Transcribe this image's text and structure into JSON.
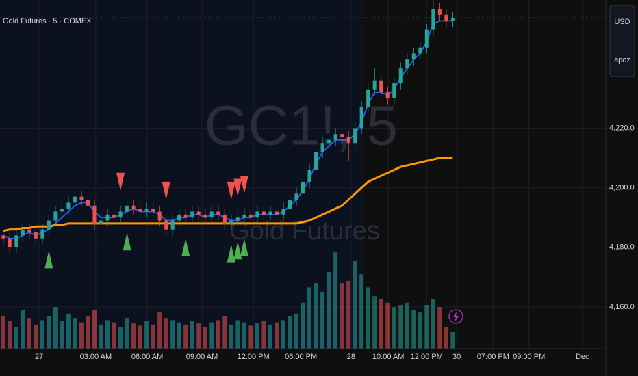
{
  "chart_data": {
    "type": "candlestick",
    "title": "Gold Futures · 5 · COMEX",
    "watermark": "GC1!, 5",
    "watermark_subtitle": "Gold Futures",
    "currency": "USD",
    "user": "apoz",
    "open": [
      4184,
      4183,
      4180,
      4184,
      4186,
      4185,
      4183,
      4186,
      4189,
      4192,
      4193,
      4195,
      4197,
      4196,
      4194,
      4188,
      4189,
      4191,
      4190,
      4192,
      4194,
      4193,
      4192,
      4193,
      4192,
      4189,
      4186,
      4189,
      4191,
      4190,
      4192,
      4191,
      4190,
      4192,
      4191,
      4188,
      4189,
      4190,
      4191,
      4190,
      4192,
      4191,
      4192,
      4191,
      4193,
      4196,
      4198,
      4202,
      4206,
      4212,
      4215,
      4216,
      4218,
      4217,
      4215,
      4220,
      4227,
      4233,
      4236,
      4232,
      4230,
      4235,
      4240,
      4243,
      4245,
      4247,
      4253,
      4260,
      4258,
      4256
    ],
    "high": [
      4186,
      4185,
      4186,
      4188,
      4188,
      4187,
      4188,
      4191,
      4194,
      4195,
      4197,
      4199,
      4199,
      4198,
      4196,
      4191,
      4193,
      4193,
      4194,
      4196,
      4196,
      4195,
      4195,
      4195,
      4194,
      4191,
      4191,
      4193,
      4193,
      4194,
      4194,
      4193,
      4194,
      4194,
      4193,
      4191,
      4192,
      4193,
      4193,
      4194,
      4194,
      4194,
      4194,
      4195,
      4198,
      4200,
      4204,
      4208,
      4214,
      4217,
      4218,
      4220,
      4220,
      4219,
      4222,
      4229,
      4235,
      4240,
      4238,
      4234,
      4237,
      4242,
      4245,
      4247,
      4249,
      4255,
      4263,
      4262,
      4260,
      4259
    ],
    "low": [
      4181,
      4178,
      4178,
      4182,
      4183,
      4181,
      4181,
      4184,
      4187,
      4190,
      4191,
      4193,
      4194,
      4192,
      4186,
      4186,
      4187,
      4188,
      4188,
      4190,
      4191,
      4190,
      4190,
      4190,
      4187,
      4184,
      4184,
      4187,
      4188,
      4188,
      4189,
      4188,
      4188,
      4189,
      4186,
      4186,
      4187,
      4188,
      4188,
      4188,
      4189,
      4189,
      4189,
      4189,
      4191,
      4194,
      4196,
      4200,
      4204,
      4210,
      4213,
      4214,
      4215,
      4209,
      4213,
      4218,
      4225,
      4231,
      4230,
      4228,
      4228,
      4233,
      4238,
      4241,
      4243,
      4245,
      4251,
      4256,
      4254,
      4254
    ],
    "close": [
      4183,
      4180,
      4184,
      4186,
      4185,
      4183,
      4186,
      4189,
      4192,
      4193,
      4195,
      4197,
      4196,
      4194,
      4188,
      4189,
      4191,
      4190,
      4192,
      4194,
      4193,
      4192,
      4193,
      4192,
      4189,
      4186,
      4189,
      4191,
      4190,
      4192,
      4191,
      4190,
      4192,
      4191,
      4188,
      4189,
      4190,
      4191,
      4190,
      4192,
      4191,
      4192,
      4191,
      4193,
      4196,
      4198,
      4202,
      4206,
      4212,
      4215,
      4216,
      4218,
      4217,
      4215,
      4220,
      4227,
      4233,
      4236,
      4232,
      4230,
      4235,
      4240,
      4243,
      4245,
      4247,
      4253,
      4260,
      4258,
      4256,
      4257
    ],
    "volume": [
      300,
      250,
      200,
      350,
      280,
      220,
      260,
      300,
      380,
      250,
      320,
      280,
      240,
      300,
      350,
      220,
      260,
      240,
      200,
      280,
      230,
      210,
      250,
      220,
      330,
      280,
      260,
      240,
      220,
      250,
      230,
      200,
      240,
      260,
      300,
      220,
      260,
      240,
      210,
      230,
      250,
      220,
      240,
      260,
      300,
      320,
      420,
      560,
      600,
      520,
      700,
      880,
      600,
      620,
      800,
      680,
      560,
      480,
      450,
      420,
      380,
      400,
      420,
      350,
      330,
      400,
      450,
      380,
      200,
      150
    ],
    "series": [
      {
        "color": "#2962ff",
        "values": [
          4184,
          4183,
          4183,
          4184,
          4185,
          4184,
          4185,
          4186,
          4188,
          4190,
          4192,
          4194,
          4195,
          4195,
          4192,
          4190,
          4190,
          4190,
          4191,
          4192,
          4193,
          4192,
          4192,
          4192,
          4191,
          4189,
          4189,
          4190,
          4190,
          4191,
          4191,
          4190,
          4191,
          4191,
          4190,
          4189,
          4189,
          4190,
          4190,
          4191,
          4191,
          4191,
          4191,
          4192,
          4194,
          4196,
          4199,
          4203,
          4208,
          4212,
          4214,
          4216,
          4216,
          4216,
          4218,
          4222,
          4228,
          4232,
          4232,
          4231,
          4233,
          4237,
          4240,
          4243,
          4245,
          4249,
          4255,
          4256,
          4256,
          4256
        ]
      },
      {
        "color": "#ff9800",
        "values": [
          4185.5,
          4186,
          4186,
          4186.5,
          4186.5,
          4187,
          4187,
          4187,
          4187.5,
          4187.5,
          4188,
          4188,
          4188,
          4188,
          4188,
          4188,
          4188,
          4188,
          4188,
          4188,
          4188,
          4188,
          4188,
          4188,
          4188,
          4188,
          4188,
          4188,
          4188,
          4188,
          4188,
          4188,
          4188,
          4188,
          4188,
          4188,
          4188,
          4188,
          4188,
          4188,
          4188,
          4188,
          4188,
          4188,
          4188,
          4188,
          4188.5,
          4189,
          4190,
          4191,
          4192,
          4193,
          4194,
          4196,
          4198,
          4200,
          4202,
          4203,
          4204,
          4205,
          4206,
          4207,
          4207.5,
          4208,
          4208.5,
          4209,
          4209.5,
          4210,
          4210,
          4210
        ]
      }
    ],
    "buy_signals": [
      7,
      19,
      28,
      35,
      36,
      37
    ],
    "sell_signals": [
      18,
      25,
      35,
      36,
      37
    ],
    "up_color": "#26a69a",
    "down_color": "#ef5350",
    "xlim": [
      0,
      93
    ],
    "ylim": [
      4146,
      4263
    ],
    "volume_lim": [
      0,
      1000
    ],
    "yticks": [
      {
        "value": 4160,
        "label": "4,160.0"
      },
      {
        "value": 4180,
        "label": "4,180.0"
      },
      {
        "value": 4200,
        "label": "4,200.0"
      },
      {
        "value": 4220,
        "label": "4,220.0"
      }
    ],
    "xticks": [
      {
        "value": 6,
        "label": "27"
      },
      {
        "value": 14.7,
        "label": "03:00 AM"
      },
      {
        "value": 22.6,
        "label": "06:00 AM"
      },
      {
        "value": 31,
        "label": "09:00 AM"
      },
      {
        "value": 38.9,
        "label": "12:00 PM"
      },
      {
        "value": 46.2,
        "label": "06:00 PM"
      },
      {
        "value": 53.9,
        "label": "28"
      },
      {
        "value": 59.6,
        "label": "10:00 AM"
      },
      {
        "value": 65.5,
        "label": "12:00 PM"
      },
      {
        "value": 70.1,
        "label": "30"
      },
      {
        "value": 75.7,
        "label": "07:00 PM"
      },
      {
        "value": 81.2,
        "label": "09:00 PM"
      },
      {
        "value": 89.4,
        "label": "Dec"
      }
    ],
    "grid": true
  }
}
